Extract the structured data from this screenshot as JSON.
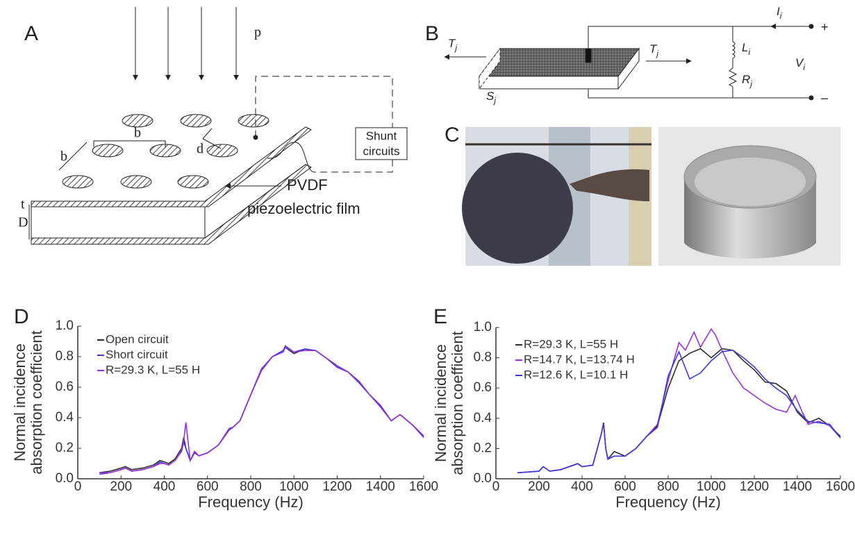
{
  "panels": {
    "a": {
      "label": "A",
      "load": "p",
      "spacing_1": "b",
      "spacing_2": "b",
      "diameter": "d",
      "thickness": "t",
      "depth": "D",
      "film_label": [
        "PVDF",
        "piezoelectric film"
      ],
      "shunt_label": [
        "Shunt",
        "circuits"
      ]
    },
    "b": {
      "label": "B",
      "tension_left": {
        "main": "T",
        "sub": "j"
      },
      "tension_right": {
        "main": "T",
        "sub": "j"
      },
      "area": {
        "main": "S",
        "sub": "j"
      },
      "inductor": {
        "main": "L",
        "sub": "i"
      },
      "resistor": {
        "main": "R",
        "sub": "j"
      },
      "voltage": {
        "main": "V",
        "sub": "i"
      },
      "current": {
        "main": "I",
        "sub": "i"
      },
      "plus": "+",
      "minus": "–"
    },
    "c": {
      "label": "C"
    },
    "d": {
      "label": "D"
    },
    "e": {
      "label": "E"
    }
  },
  "chart_data": [
    {
      "type": "line",
      "xlabel": "Frequency (Hz)",
      "ylabel": [
        "Normal incidence",
        "absorption coefficient"
      ],
      "xlim": [
        0,
        1600
      ],
      "xticks": [
        0,
        200,
        400,
        600,
        800,
        1000,
        1200,
        1400,
        1600
      ],
      "ylim": [
        0,
        1
      ],
      "yticks": [
        {
          "value": 0,
          "label": "0.0"
        },
        0.2,
        0.4,
        0.6,
        0.8,
        {
          "value": 1,
          "label": "1.0"
        }
      ],
      "series": [
        {
          "name": "Open circuit",
          "color": "#2b2b2b",
          "x": [
            100,
            150,
            200,
            220,
            250,
            300,
            350,
            380,
            400,
            420,
            450,
            480,
            490,
            500,
            520,
            540,
            560,
            600,
            650,
            700,
            720,
            750,
            800,
            850,
            900,
            950,
            960,
            1000,
            1050,
            1100,
            1150,
            1200,
            1250,
            1300,
            1350,
            1400,
            1450,
            1490,
            1500,
            1550,
            1600
          ],
          "values": [
            0.04,
            0.05,
            0.07,
            0.08,
            0.06,
            0.07,
            0.09,
            0.12,
            0.11,
            0.1,
            0.13,
            0.2,
            0.27,
            0.2,
            0.12,
            0.17,
            0.15,
            0.17,
            0.22,
            0.32,
            0.34,
            0.38,
            0.55,
            0.72,
            0.8,
            0.84,
            0.86,
            0.82,
            0.85,
            0.84,
            0.79,
            0.73,
            0.7,
            0.63,
            0.55,
            0.48,
            0.38,
            0.42,
            0.41,
            0.35,
            0.28
          ]
        },
        {
          "name": "Short circuit",
          "color": "#3b3bdc",
          "x": [
            100,
            150,
            200,
            220,
            250,
            300,
            350,
            380,
            400,
            420,
            450,
            480,
            490,
            500,
            520,
            540,
            560,
            600,
            650,
            700,
            720,
            750,
            800,
            850,
            900,
            950,
            960,
            1000,
            1050,
            1100,
            1150,
            1200,
            1250,
            1300,
            1350,
            1400,
            1450,
            1490,
            1500,
            1550,
            1600
          ],
          "values": [
            0.03,
            0.04,
            0.06,
            0.07,
            0.05,
            0.06,
            0.08,
            0.11,
            0.1,
            0.09,
            0.12,
            0.18,
            0.24,
            0.2,
            0.12,
            0.17,
            0.15,
            0.17,
            0.22,
            0.32,
            0.34,
            0.38,
            0.55,
            0.71,
            0.8,
            0.84,
            0.87,
            0.83,
            0.85,
            0.84,
            0.79,
            0.74,
            0.7,
            0.64,
            0.55,
            0.48,
            0.38,
            0.42,
            0.41,
            0.35,
            0.28
          ]
        },
        {
          "name": "R=29.3 K, L=55 H",
          "color": "#9b30d9",
          "x": [
            100,
            150,
            200,
            220,
            250,
            300,
            350,
            380,
            400,
            420,
            450,
            480,
            490,
            500,
            520,
            540,
            560,
            600,
            650,
            700,
            720,
            750,
            800,
            850,
            900,
            950,
            960,
            1000,
            1050,
            1100,
            1150,
            1200,
            1250,
            1300,
            1350,
            1400,
            1450,
            1490,
            1500,
            1550,
            1600
          ],
          "values": [
            0.04,
            0.04,
            0.06,
            0.07,
            0.05,
            0.06,
            0.08,
            0.1,
            0.1,
            0.09,
            0.12,
            0.19,
            0.25,
            0.37,
            0.12,
            0.18,
            0.15,
            0.17,
            0.22,
            0.33,
            0.34,
            0.38,
            0.55,
            0.72,
            0.8,
            0.83,
            0.86,
            0.83,
            0.84,
            0.84,
            0.79,
            0.73,
            0.7,
            0.63,
            0.55,
            0.47,
            0.38,
            0.42,
            0.41,
            0.35,
            0.27
          ]
        }
      ]
    },
    {
      "type": "line",
      "xlabel": "Frequency (Hz)",
      "ylabel": [
        "Normal incidence",
        "absorption coefficient"
      ],
      "xlim": [
        0,
        1600
      ],
      "xticks": [
        0,
        200,
        400,
        600,
        800,
        1000,
        1200,
        1400,
        1600
      ],
      "ylim": [
        0,
        1
      ],
      "yticks": [
        {
          "value": 0,
          "label": "0.0"
        },
        0.2,
        0.4,
        0.6,
        0.8,
        {
          "value": 1,
          "label": "1.0"
        }
      ],
      "series": [
        {
          "name": "R=29.3 K, L=55 H",
          "color": "#2b2b2b",
          "x": [
            100,
            200,
            220,
            250,
            300,
            380,
            400,
            450,
            490,
            500,
            510,
            520,
            550,
            600,
            650,
            700,
            750,
            800,
            850,
            900,
            950,
            1000,
            1050,
            1100,
            1150,
            1200,
            1250,
            1300,
            1350,
            1400,
            1450,
            1500,
            1550,
            1600
          ],
          "values": [
            0.04,
            0.05,
            0.08,
            0.05,
            0.06,
            0.1,
            0.08,
            0.09,
            0.3,
            0.37,
            0.2,
            0.13,
            0.18,
            0.15,
            0.2,
            0.28,
            0.35,
            0.6,
            0.78,
            0.83,
            0.86,
            0.8,
            0.86,
            0.85,
            0.78,
            0.72,
            0.64,
            0.63,
            0.58,
            0.44,
            0.37,
            0.4,
            0.35,
            0.28
          ]
        },
        {
          "name": "R=14.7 K, L=13.74 H",
          "color": "#9b30d9",
          "x": [
            100,
            200,
            220,
            250,
            300,
            380,
            400,
            450,
            490,
            500,
            510,
            520,
            550,
            600,
            650,
            700,
            750,
            800,
            850,
            880,
            920,
            950,
            1000,
            1020,
            1050,
            1100,
            1150,
            1200,
            1250,
            1300,
            1350,
            1390,
            1420,
            1450,
            1500,
            1550,
            1600
          ],
          "values": [
            0.04,
            0.05,
            0.08,
            0.05,
            0.06,
            0.1,
            0.08,
            0.09,
            0.3,
            0.37,
            0.2,
            0.13,
            0.15,
            0.15,
            0.2,
            0.28,
            0.36,
            0.65,
            0.9,
            0.85,
            0.97,
            0.87,
            0.99,
            0.95,
            0.85,
            0.7,
            0.6,
            0.55,
            0.5,
            0.46,
            0.44,
            0.55,
            0.45,
            0.36,
            0.38,
            0.35,
            0.27
          ]
        },
        {
          "name": "R=12.6 K, L=10.1 H",
          "color": "#3b3bdc",
          "x": [
            100,
            200,
            220,
            250,
            300,
            380,
            400,
            450,
            490,
            500,
            510,
            520,
            550,
            600,
            650,
            700,
            750,
            800,
            850,
            900,
            950,
            1000,
            1050,
            1100,
            1150,
            1200,
            1250,
            1300,
            1350,
            1400,
            1450,
            1500,
            1550,
            1600
          ],
          "values": [
            0.04,
            0.05,
            0.08,
            0.05,
            0.06,
            0.1,
            0.08,
            0.09,
            0.3,
            0.37,
            0.2,
            0.13,
            0.15,
            0.15,
            0.2,
            0.28,
            0.34,
            0.68,
            0.84,
            0.66,
            0.7,
            0.78,
            0.84,
            0.85,
            0.8,
            0.74,
            0.66,
            0.6,
            0.55,
            0.45,
            0.38,
            0.37,
            0.36,
            0.27
          ]
        }
      ]
    }
  ]
}
